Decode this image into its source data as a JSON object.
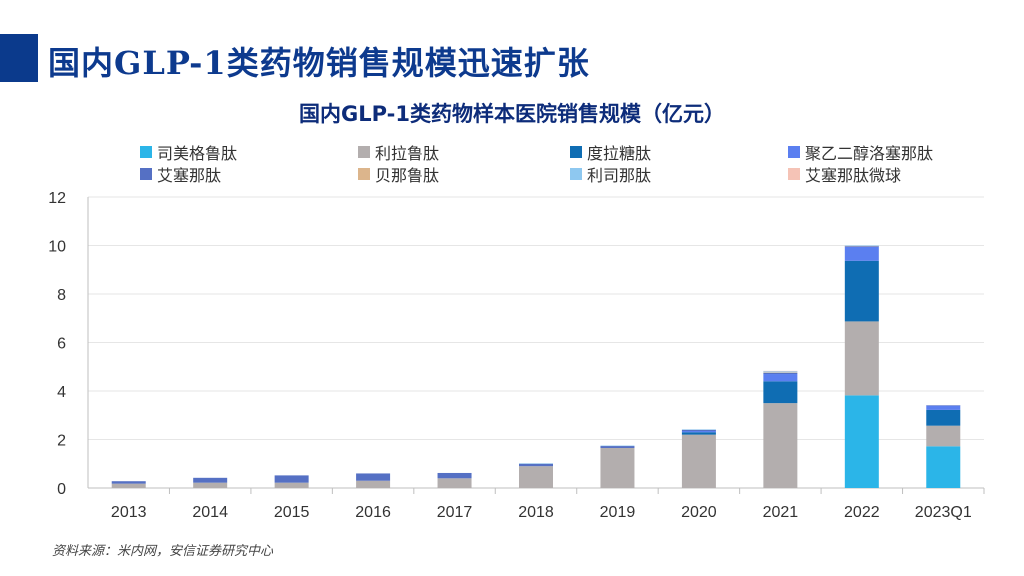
{
  "slide": {
    "title": "国内GLP-1类药物销售规模迅速扩张",
    "source": "资料来源：米内网，安信证券研究中心",
    "accent_color": "#0b3a8c"
  },
  "chart_data": {
    "type": "bar",
    "stacked": true,
    "title": "国内GLP-1类药物样本医院销售规模（亿元）",
    "xlabel": "",
    "ylabel": "",
    "ylim": [
      0,
      12
    ],
    "yticks": [
      0,
      2,
      4,
      6,
      8,
      10,
      12
    ],
    "grid": true,
    "legend_position": "top",
    "categories": [
      "2013",
      "2014",
      "2015",
      "2016",
      "2017",
      "2018",
      "2019",
      "2020",
      "2021",
      "2022",
      "2023Q1"
    ],
    "series": [
      {
        "name": "司美格鲁肽",
        "color": "#2bb5e8",
        "values": [
          0,
          0,
          0,
          0,
          0,
          0,
          0,
          0,
          0,
          3.82,
          1.72
        ]
      },
      {
        "name": "利拉鲁肽",
        "color": "#b3aeae",
        "values": [
          0.18,
          0.22,
          0.22,
          0.3,
          0.4,
          0.9,
          1.65,
          2.2,
          3.5,
          3.05,
          0.85
        ]
      },
      {
        "name": "度拉糖肽",
        "color": "#0f6db3",
        "values": [
          0,
          0,
          0,
          0,
          0,
          0,
          0,
          0.1,
          0.9,
          2.5,
          0.65
        ]
      },
      {
        "name": "聚乙二醇洛塞那肽",
        "color": "#5b7ff0",
        "values": [
          0,
          0,
          0,
          0,
          0,
          0,
          0,
          0.05,
          0.3,
          0.58,
          0.18
        ]
      },
      {
        "name": "艾塞那肽",
        "color": "#5570c4",
        "values": [
          0.1,
          0.2,
          0.3,
          0.3,
          0.22,
          0.1,
          0.08,
          0.05,
          0.05,
          0.03,
          0.01
        ]
      },
      {
        "name": "贝那鲁肽",
        "color": "#dcb58c",
        "values": [
          0,
          0,
          0,
          0,
          0,
          0,
          0,
          0,
          0.02,
          0.01,
          0
        ]
      },
      {
        "name": "利司那肽",
        "color": "#8ec8f0",
        "values": [
          0,
          0,
          0,
          0,
          0,
          0.02,
          0.02,
          0.02,
          0.05,
          0.01,
          0
        ]
      },
      {
        "name": "艾塞那肽微球",
        "color": "#f5c3b6",
        "values": [
          0,
          0,
          0,
          0,
          0,
          0,
          0,
          0,
          0.01,
          0,
          0
        ]
      }
    ]
  }
}
